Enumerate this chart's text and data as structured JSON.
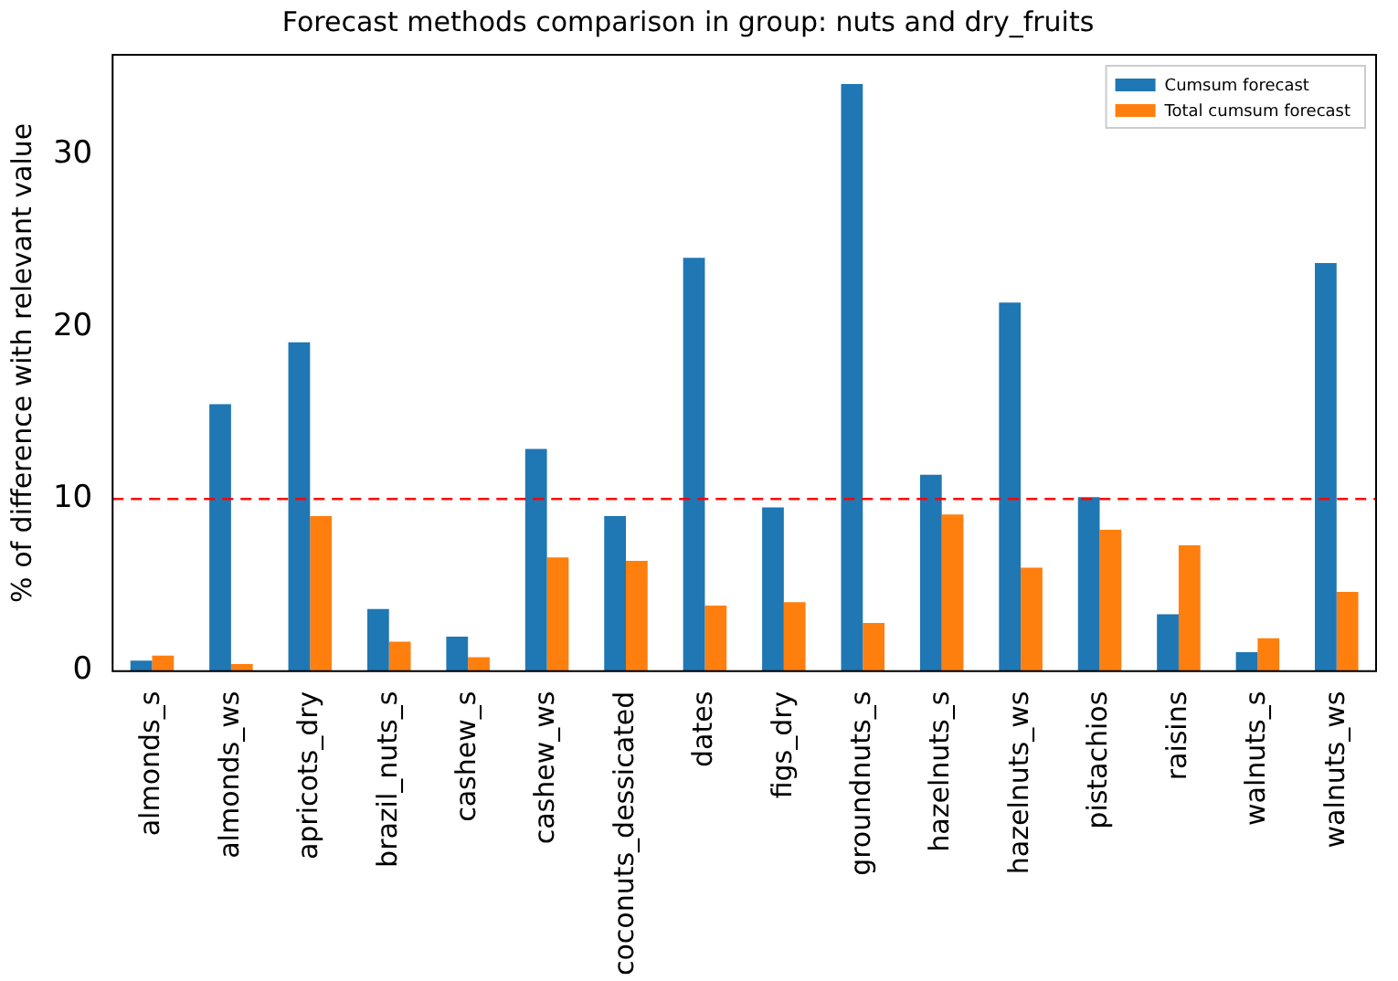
{
  "chart_data": {
    "type": "bar",
    "title": "Forecast methods comparison in group: nuts and dry_fruits",
    "ylabel": "% of difference with relevant value",
    "categories": [
      "almonds_s",
      "almonds_ws",
      "apricots_dry",
      "brazil_nuts_s",
      "cashew_s",
      "cashew_ws",
      "coconuts_dessicated",
      "dates",
      "figs_dry",
      "groundnuts_s",
      "hazelnuts_s",
      "hazelnuts_ws",
      "pistachios",
      "raisins",
      "walnuts_s",
      "walnuts_ws"
    ],
    "series": [
      {
        "name": "Cumsum forecast",
        "color": "#1f77b4",
        "values": [
          0.6,
          15.5,
          19.1,
          3.6,
          2.0,
          12.9,
          9.0,
          24.0,
          9.5,
          34.1,
          11.4,
          21.4,
          10.1,
          3.3,
          1.1,
          23.7
        ]
      },
      {
        "name": "Total cumsum forecast",
        "color": "#ff7f0e",
        "values": [
          0.9,
          0.4,
          9.0,
          1.7,
          0.8,
          6.6,
          6.4,
          3.8,
          4.0,
          2.8,
          9.1,
          6.0,
          8.2,
          7.3,
          1.9,
          4.6
        ]
      }
    ],
    "ylim": [
      0,
      35.8
    ],
    "yticks": [
      0,
      10,
      20,
      30
    ],
    "grid": false,
    "legend": "top right",
    "ref_lines": [
      {
        "axis": "y",
        "value": 10,
        "color": "#ff0000",
        "line_style": "dashed"
      }
    ]
  }
}
